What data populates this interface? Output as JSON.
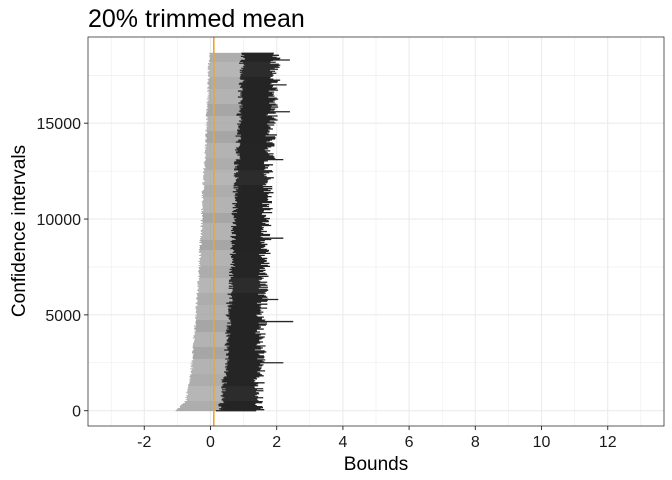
{
  "chart_data": {
    "type": "bar",
    "title": "20% trimmed mean",
    "xlabel": "Bounds",
    "ylabel": "Confidence intervals",
    "xlim": [
      -3.7,
      13.7
    ],
    "ylim": [
      -800,
      19500
    ],
    "x_ticks": [
      -2,
      0,
      2,
      4,
      6,
      8,
      10,
      12
    ],
    "x_tick_labels": [
      "-2",
      "0",
      "2",
      "4",
      "6",
      "8",
      "10",
      "12"
    ],
    "y_ticks": [
      0,
      5000,
      10000,
      15000
    ],
    "y_tick_labels": [
      "0",
      "5000",
      "10000",
      "15000"
    ],
    "grid": true,
    "reference_line": {
      "x": 0.1,
      "color": "#f4a32a"
    },
    "interval_count": 18700,
    "interval_colors": {
      "lower_part": "#9a9a9a",
      "upper_part": "#252525"
    },
    "lower_bound_profile": [
      {
        "y": 0,
        "x": -1.0
      },
      {
        "y": 500,
        "x": -0.7
      },
      {
        "y": 2000,
        "x": -0.55
      },
      {
        "y": 5000,
        "x": -0.4
      },
      {
        "y": 8000,
        "x": -0.28
      },
      {
        "y": 11000,
        "x": -0.2
      },
      {
        "y": 14000,
        "x": -0.1
      },
      {
        "y": 17000,
        "x": -0.02
      },
      {
        "y": 18700,
        "x": 0.0
      }
    ],
    "upper_bound_profile": [
      {
        "y": 0,
        "x": 1.45
      },
      {
        "y": 5000,
        "x": 1.55
      },
      {
        "y": 10000,
        "x": 1.7
      },
      {
        "y": 15000,
        "x": 1.85
      },
      {
        "y": 18700,
        "x": 2.0
      }
    ],
    "notable_upper_bounds": [
      {
        "y": 2500,
        "x": 2.2
      },
      {
        "y": 4650,
        "x": 2.5
      },
      {
        "y": 5800,
        "x": 2.05
      },
      {
        "y": 9000,
        "x": 2.2
      },
      {
        "y": 13100,
        "x": 2.2
      },
      {
        "y": 15600,
        "x": 2.4
      },
      {
        "y": 17000,
        "x": 2.3
      },
      {
        "y": 18300,
        "x": 2.4
      }
    ]
  }
}
